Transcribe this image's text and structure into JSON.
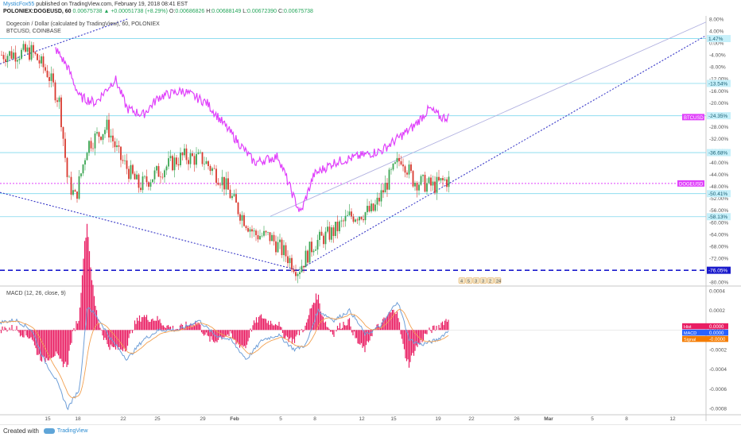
{
  "header": {
    "user": "MysticFox55",
    "published_text": "published on TradingView.com, February 19, 2018 08:41 EST",
    "symbol": "POLONIEX:DOGEUSD, 60",
    "last": "0.00675738",
    "change": "▲ +0.00051738 (+8.29%)",
    "o_label": "O:",
    "o_val": "0.00686826",
    "h_label": "H:",
    "h_val": "0.00688149",
    "l_label": "L:",
    "l_val": "0.00672390",
    "c_label": "C:",
    "c_val": "0.00675738"
  },
  "legend": {
    "main": "Dogecoin / Dollar (calculated by TradingView), 60, POLONIEX",
    "compare": "BTCUSD, COINBASE",
    "macd": "MACD (12, 26, close, 9)"
  },
  "main_axis_ticks": [
    "8.00%",
    "4.00%",
    "0.00%",
    "-4.00%",
    "-8.00%",
    "-12.00%",
    "-16.00%",
    "-20.00%",
    "-24.00%",
    "-28.00%",
    "-32.00%",
    "-36.00%",
    "-40.00%",
    "-44.00%",
    "-48.00%",
    "-52.00%",
    "-56.00%",
    "-60.00%",
    "-64.00%",
    "-68.00%",
    "-72.00%",
    "-76.00%",
    "-80.00%"
  ],
  "hlines": [
    {
      "label": "1.47%",
      "value": 1.47
    },
    {
      "label": "-13.54%",
      "value": -13.54
    },
    {
      "label": "-24.35%",
      "value": -24.35
    },
    {
      "label": "-36.68%",
      "value": -36.68
    },
    {
      "label": "-50.41%",
      "value": -50.41
    },
    {
      "label": "-58.13%",
      "value": -58.13
    }
  ],
  "dashed_level": {
    "label": "-76.05%",
    "value": -76.05
  },
  "tags": {
    "btc": {
      "label": "BTCUSD",
      "value": -24.8
    },
    "doge": {
      "label": "DOGEUSD",
      "value": -47.0
    }
  },
  "events": [
    "4",
    "5",
    "3",
    "3",
    "2",
    "24"
  ],
  "macd_axis_ticks": [
    "0.0004",
    "0.0002",
    "0.0000",
    "-0.0002",
    "-0.0004",
    "-0.0006",
    "-0.0008"
  ],
  "macd_tags": [
    {
      "label": "0.0000",
      "name": "Hist",
      "color": "#e91e63"
    },
    {
      "label": "0.0000",
      "name": "MACD",
      "color": "#2962ff"
    },
    {
      "label": "-0.0000",
      "name": "Signal",
      "color": "#f57c00"
    }
  ],
  "time_ticks": [
    "15",
    "18",
    "22",
    "25",
    "29",
    "Feb",
    "5",
    "8",
    "12",
    "15",
    "19",
    "22",
    "26",
    "Mar",
    "5",
    "8",
    "12"
  ],
  "footer": {
    "created_with": "Created with",
    "brand": "TradingView"
  },
  "colors": {
    "btc_line": "#e040fb",
    "up": "#3aa552",
    "down": "#d9382e",
    "hline": "#7fd8ee",
    "dashed": "#1a1acc",
    "trend": "#3a3ac8",
    "hist": "#e91e63",
    "macd_line": "#6f9fd8",
    "signal_line": "#f2a050"
  }
}
